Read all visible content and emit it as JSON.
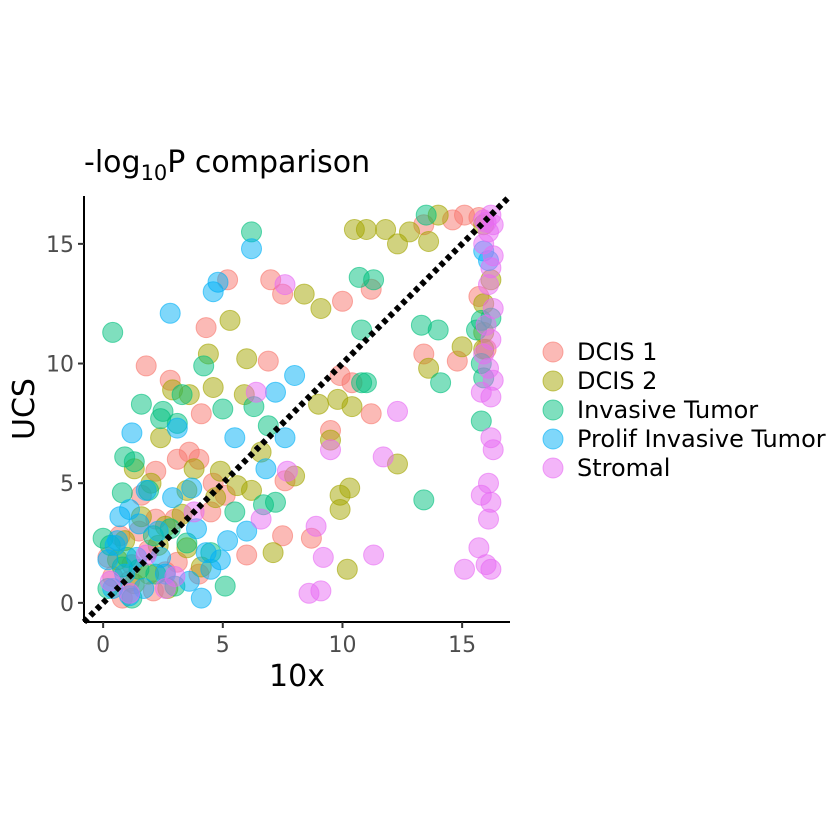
{
  "chart_data": {
    "type": "scatter",
    "title": {
      "main": "-log",
      "subscript": "10",
      "tail": "P comparison"
    },
    "xlabel": "10x",
    "ylabel": "UCS",
    "xlim": [
      -0.8,
      17
    ],
    "ylim": [
      -0.8,
      17
    ],
    "xticks": [
      0,
      5,
      10,
      15
    ],
    "yticks": [
      0,
      5,
      10,
      15
    ],
    "grid": false,
    "legend_position": "right",
    "reference_line": {
      "x": [
        -0.8,
        17
      ],
      "y": [
        -0.8,
        17
      ],
      "style": "dotted",
      "color": "#000000"
    },
    "series": [
      {
        "name": "DCIS 1",
        "color": "#F8766D",
        "points": [
          [
            15.1,
            16.2
          ],
          [
            13.4,
            15.8
          ],
          [
            14.6,
            16.0
          ],
          [
            15.7,
            16.1
          ],
          [
            5.2,
            13.5
          ],
          [
            7.0,
            13.5
          ],
          [
            7.5,
            12.9
          ],
          [
            10.0,
            12.6
          ],
          [
            11.2,
            13.1
          ],
          [
            4.3,
            11.5
          ],
          [
            1.8,
            9.9
          ],
          [
            6.9,
            10.1
          ],
          [
            9.9,
            9.5
          ],
          [
            10.4,
            9.2
          ],
          [
            2.8,
            9.3
          ],
          [
            4.1,
            7.9
          ],
          [
            11.2,
            7.9
          ],
          [
            13.4,
            10.4
          ],
          [
            14.8,
            10.1
          ],
          [
            15.7,
            12.8
          ],
          [
            16.0,
            10.6
          ],
          [
            3.6,
            6.3
          ],
          [
            4.0,
            6.0
          ],
          [
            7.6,
            5.1
          ],
          [
            9.5,
            7.2
          ],
          [
            3.1,
            6.0
          ],
          [
            2.2,
            5.5
          ],
          [
            4.6,
            5.0
          ],
          [
            5.1,
            4.5
          ],
          [
            1.6,
            4.5
          ],
          [
            3.0,
            3.5
          ],
          [
            4.5,
            3.8
          ],
          [
            7.5,
            2.8
          ],
          [
            8.7,
            2.7
          ],
          [
            6.0,
            2.0
          ],
          [
            1.5,
            3.0
          ],
          [
            0.7,
            2.8
          ],
          [
            1.9,
            2.2
          ],
          [
            3.1,
            1.7
          ],
          [
            0.4,
            1.1
          ],
          [
            1.1,
            0.9
          ],
          [
            2.1,
            0.5
          ],
          [
            0.2,
            1.9
          ],
          [
            4.0,
            1.2
          ],
          [
            2.6,
            1.3
          ],
          [
            1.2,
            1.6
          ],
          [
            0.8,
            0.2
          ],
          [
            2.2,
            3.5
          ]
        ]
      },
      {
        "name": "DCIS 2",
        "color": "#A3A500",
        "points": [
          [
            10.5,
            15.6
          ],
          [
            11.0,
            15.6
          ],
          [
            11.8,
            15.6
          ],
          [
            14.0,
            16.2
          ],
          [
            12.3,
            15.0
          ],
          [
            12.8,
            15.5
          ],
          [
            13.6,
            15.1
          ],
          [
            15.9,
            15.8
          ],
          [
            16.2,
            13.5
          ],
          [
            15.9,
            12.5
          ],
          [
            15.9,
            11.3
          ],
          [
            15.9,
            10.6
          ],
          [
            15.0,
            10.7
          ],
          [
            13.6,
            9.8
          ],
          [
            8.4,
            12.9
          ],
          [
            9.1,
            12.3
          ],
          [
            5.3,
            11.8
          ],
          [
            4.4,
            10.4
          ],
          [
            6.0,
            10.2
          ],
          [
            2.9,
            8.9
          ],
          [
            3.6,
            8.7
          ],
          [
            4.6,
            9.0
          ],
          [
            5.9,
            8.7
          ],
          [
            9.0,
            8.3
          ],
          [
            9.8,
            8.5
          ],
          [
            10.4,
            8.2
          ],
          [
            9.5,
            6.8
          ],
          [
            12.3,
            5.8
          ],
          [
            6.6,
            6.3
          ],
          [
            8.0,
            5.3
          ],
          [
            5.6,
            4.9
          ],
          [
            4.7,
            4.4
          ],
          [
            6.2,
            4.7
          ],
          [
            9.9,
            4.5
          ],
          [
            10.3,
            4.8
          ],
          [
            9.9,
            3.9
          ],
          [
            2.4,
            6.9
          ],
          [
            3.8,
            5.6
          ],
          [
            1.3,
            5.6
          ],
          [
            2.0,
            5.0
          ],
          [
            3.5,
            4.7
          ],
          [
            4.9,
            5.5
          ],
          [
            3.3,
            3.7
          ],
          [
            2.6,
            3.2
          ],
          [
            1.6,
            3.6
          ],
          [
            0.9,
            2.6
          ],
          [
            2.3,
            2.4
          ],
          [
            3.5,
            2.3
          ],
          [
            7.1,
            2.1
          ],
          [
            4.1,
            1.5
          ],
          [
            10.2,
            1.4
          ],
          [
            1.9,
            1.2
          ],
          [
            0.6,
            1.8
          ],
          [
            1.3,
            0.8
          ],
          [
            2.7,
            0.6
          ]
        ]
      },
      {
        "name": "Invasive Tumor",
        "color": "#00BF7D",
        "points": [
          [
            13.5,
            16.2
          ],
          [
            6.2,
            15.5
          ],
          [
            0.4,
            11.3
          ],
          [
            10.7,
            13.6
          ],
          [
            11.3,
            13.5
          ],
          [
            10.8,
            11.4
          ],
          [
            13.3,
            11.6
          ],
          [
            14.0,
            11.4
          ],
          [
            15.6,
            11.4
          ],
          [
            15.8,
            11.8
          ],
          [
            16.2,
            11.9
          ],
          [
            15.8,
            10.0
          ],
          [
            15.9,
            9.4
          ],
          [
            14.1,
            9.2
          ],
          [
            10.8,
            9.2
          ],
          [
            11.0,
            9.2
          ],
          [
            15.8,
            7.6
          ],
          [
            4.2,
            9.9
          ],
          [
            5.0,
            8.1
          ],
          [
            2.5,
            8.0
          ],
          [
            3.3,
            8.7
          ],
          [
            1.6,
            8.3
          ],
          [
            2.4,
            7.7
          ],
          [
            3.1,
            7.5
          ],
          [
            6.3,
            8.2
          ],
          [
            6.9,
            7.4
          ],
          [
            0.9,
            6.1
          ],
          [
            1.3,
            5.9
          ],
          [
            13.4,
            4.3
          ],
          [
            6.7,
            4.1
          ],
          [
            7.2,
            4.2
          ],
          [
            5.5,
            3.8
          ],
          [
            0.8,
            4.6
          ],
          [
            1.9,
            4.7
          ],
          [
            2.8,
            3.1
          ],
          [
            3.5,
            2.5
          ],
          [
            1.0,
            1.9
          ],
          [
            0.0,
            2.7
          ],
          [
            0.3,
            2.4
          ],
          [
            1.5,
            1.4
          ],
          [
            2.2,
            1.2
          ],
          [
            5.1,
            0.7
          ],
          [
            0.2,
            0.6
          ],
          [
            1.2,
            0.2
          ],
          [
            3.0,
            0.7
          ],
          [
            4.5,
            2.1
          ],
          [
            2.1,
            2.8
          ],
          [
            0.8,
            1.5
          ]
        ]
      },
      {
        "name": "Prolif Invasive Tumor",
        "color": "#00B0F6",
        "points": [
          [
            6.2,
            14.8
          ],
          [
            4.6,
            13.0
          ],
          [
            4.8,
            13.4
          ],
          [
            2.8,
            12.1
          ],
          [
            15.9,
            14.7
          ],
          [
            16.1,
            14.3
          ],
          [
            8.0,
            9.5
          ],
          [
            7.2,
            8.8
          ],
          [
            3.1,
            7.3
          ],
          [
            1.2,
            7.1
          ],
          [
            5.5,
            6.9
          ],
          [
            7.6,
            6.9
          ],
          [
            6.8,
            5.6
          ],
          [
            3.7,
            4.8
          ],
          [
            1.8,
            4.7
          ],
          [
            2.9,
            4.4
          ],
          [
            1.1,
            3.9
          ],
          [
            0.7,
            3.6
          ],
          [
            1.5,
            3.3
          ],
          [
            2.3,
            3.0
          ],
          [
            3.9,
            3.1
          ],
          [
            5.2,
            2.6
          ],
          [
            6.0,
            3.0
          ],
          [
            4.3,
            2.1
          ],
          [
            4.5,
            1.4
          ],
          [
            4.9,
            1.8
          ],
          [
            2.6,
            1.2
          ],
          [
            0.5,
            2.4
          ],
          [
            0.2,
            1.8
          ],
          [
            0.9,
            1.2
          ],
          [
            1.7,
            0.6
          ],
          [
            1.1,
            0.3
          ],
          [
            0.4,
            0.6
          ],
          [
            2.4,
            1.9
          ],
          [
            3.6,
            0.9
          ],
          [
            4.1,
            0.2
          ],
          [
            0.6,
            2.6
          ],
          [
            1.4,
            1.9
          ]
        ]
      },
      {
        "name": "Stromal",
        "color": "#E76BF3",
        "points": [
          [
            15.9,
            16.0
          ],
          [
            16.2,
            16.2
          ],
          [
            16.0,
            15.9
          ],
          [
            16.3,
            15.8
          ],
          [
            16.1,
            15.5
          ],
          [
            15.9,
            15.0
          ],
          [
            16.3,
            14.5
          ],
          [
            16.2,
            14.0
          ],
          [
            16.1,
            13.3
          ],
          [
            16.3,
            12.3
          ],
          [
            16.0,
            11.6
          ],
          [
            16.2,
            11.0
          ],
          [
            15.9,
            10.4
          ],
          [
            16.1,
            9.8
          ],
          [
            16.3,
            9.3
          ],
          [
            15.8,
            8.8
          ],
          [
            16.2,
            8.6
          ],
          [
            16.2,
            6.9
          ],
          [
            16.3,
            6.4
          ],
          [
            16.1,
            5.0
          ],
          [
            15.8,
            4.5
          ],
          [
            16.2,
            4.2
          ],
          [
            16.1,
            3.5
          ],
          [
            15.7,
            2.3
          ],
          [
            16.0,
            1.6
          ],
          [
            16.2,
            1.4
          ],
          [
            15.1,
            1.4
          ],
          [
            7.6,
            13.3
          ],
          [
            6.4,
            8.8
          ],
          [
            7.7,
            5.5
          ],
          [
            9.5,
            6.4
          ],
          [
            11.7,
            6.1
          ],
          [
            12.3,
            8.0
          ],
          [
            8.9,
            3.2
          ],
          [
            6.6,
            3.5
          ],
          [
            9.2,
            1.9
          ],
          [
            11.3,
            2.0
          ],
          [
            8.6,
            0.4
          ],
          [
            9.1,
            0.5
          ],
          [
            3.0,
            1.1
          ],
          [
            2.6,
            0.6
          ],
          [
            1.1,
            0.4
          ],
          [
            0.3,
            0.9
          ],
          [
            1.8,
            2.0
          ],
          [
            3.8,
            3.8
          ]
        ]
      }
    ]
  }
}
